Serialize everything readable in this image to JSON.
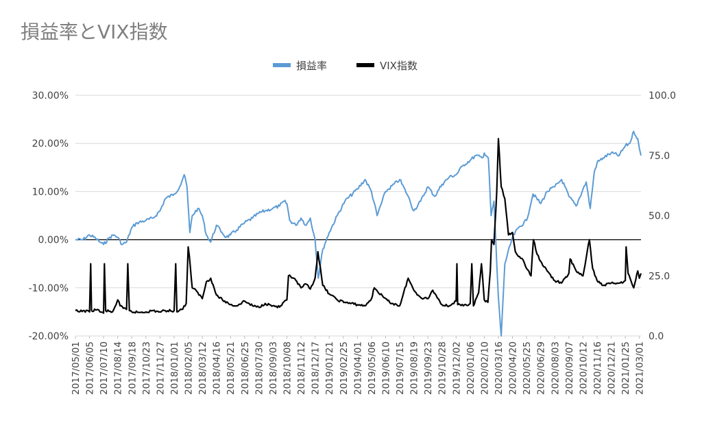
{
  "chart_data": {
    "type": "line",
    "title": "損益率とVIX指数",
    "legend_position": "top",
    "grid": true,
    "series": [
      {
        "name": "損益率",
        "axis": "left",
        "color": "#5b9bd5",
        "points": [
          [
            "2017-05-01",
            0.0
          ],
          [
            "2017-05-20",
            0.0
          ],
          [
            "2017-06-05",
            1.0
          ],
          [
            "2017-06-20",
            0.3
          ],
          [
            "2017-07-01",
            -0.5
          ],
          [
            "2017-07-10",
            -1.0
          ],
          [
            "2017-07-25",
            0.5
          ],
          [
            "2017-08-05",
            1.0
          ],
          [
            "2017-08-14",
            0.5
          ],
          [
            "2017-08-25",
            -1.0
          ],
          [
            "2017-09-05",
            -0.5
          ],
          [
            "2017-09-18",
            2.5
          ],
          [
            "2017-10-01",
            3.5
          ],
          [
            "2017-10-23",
            4.0
          ],
          [
            "2017-11-10",
            4.5
          ],
          [
            "2017-11-27",
            6.0
          ],
          [
            "2017-12-10",
            8.5
          ],
          [
            "2018-01-01",
            9.5
          ],
          [
            "2018-01-15",
            11.0
          ],
          [
            "2018-01-26",
            13.5
          ],
          [
            "2018-02-02",
            11.0
          ],
          [
            "2018-02-09",
            1.5
          ],
          [
            "2018-02-15",
            5.0
          ],
          [
            "2018-03-01",
            6.5
          ],
          [
            "2018-03-12",
            5.0
          ],
          [
            "2018-03-22",
            1.0
          ],
          [
            "2018-04-02",
            -0.5
          ],
          [
            "2018-04-16",
            3.0
          ],
          [
            "2018-04-30",
            1.5
          ],
          [
            "2018-05-10",
            0.5
          ],
          [
            "2018-05-21",
            1.0
          ],
          [
            "2018-06-05",
            2.0
          ],
          [
            "2018-06-25",
            3.5
          ],
          [
            "2018-07-15",
            4.5
          ],
          [
            "2018-07-30",
            5.5
          ],
          [
            "2018-08-15",
            6.0
          ],
          [
            "2018-09-03",
            6.5
          ],
          [
            "2018-09-20",
            7.0
          ],
          [
            "2018-10-01",
            8.0
          ],
          [
            "2018-10-08",
            7.5
          ],
          [
            "2018-10-15",
            4.0
          ],
          [
            "2018-10-30",
            3.0
          ],
          [
            "2018-11-12",
            4.5
          ],
          [
            "2018-11-25",
            3.0
          ],
          [
            "2018-12-05",
            4.5
          ],
          [
            "2018-12-17",
            0.0
          ],
          [
            "2018-12-25",
            -8.0
          ],
          [
            "2019-01-05",
            -2.0
          ],
          [
            "2019-01-21",
            1.5
          ],
          [
            "2019-02-10",
            5.0
          ],
          [
            "2019-03-01",
            8.0
          ],
          [
            "2019-04-01",
            10.5
          ],
          [
            "2019-04-20",
            12.5
          ],
          [
            "2019-05-06",
            10.0
          ],
          [
            "2019-05-20",
            5.0
          ],
          [
            "2019-06-10",
            10.0
          ],
          [
            "2019-07-15",
            12.5
          ],
          [
            "2019-08-05",
            9.0
          ],
          [
            "2019-08-19",
            6.0
          ],
          [
            "2019-09-05",
            8.0
          ],
          [
            "2019-09-23",
            11.0
          ],
          [
            "2019-10-10",
            9.0
          ],
          [
            "2019-10-28",
            11.5
          ],
          [
            "2019-11-15",
            13.0
          ],
          [
            "2019-12-02",
            13.5
          ],
          [
            "2019-12-20",
            15.5
          ],
          [
            "2020-01-06",
            16.5
          ],
          [
            "2020-01-20",
            17.5
          ],
          [
            "2020-02-05",
            17.0
          ],
          [
            "2020-02-10",
            18.0
          ],
          [
            "2020-02-20",
            17.0
          ],
          [
            "2020-02-27",
            5.0
          ],
          [
            "2020-03-05",
            8.0
          ],
          [
            "2020-03-12",
            -5.0
          ],
          [
            "2020-03-16",
            -12.0
          ],
          [
            "2020-03-23",
            -20.0
          ],
          [
            "2020-04-01",
            -5.0
          ],
          [
            "2020-04-20",
            0.5
          ],
          [
            "2020-05-05",
            2.5
          ],
          [
            "2020-05-25",
            4.0
          ],
          [
            "2020-06-10",
            9.5
          ],
          [
            "2020-06-29",
            7.5
          ],
          [
            "2020-07-15",
            10.0
          ],
          [
            "2020-08-03",
            11.0
          ],
          [
            "2020-08-20",
            12.5
          ],
          [
            "2020-09-07",
            9.0
          ],
          [
            "2020-09-25",
            7.0
          ],
          [
            "2020-10-12",
            10.5
          ],
          [
            "2020-10-20",
            12.0
          ],
          [
            "2020-10-30",
            6.5
          ],
          [
            "2020-11-09",
            14.0
          ],
          [
            "2020-11-16",
            16.0
          ],
          [
            "2020-12-01",
            17.0
          ],
          [
            "2020-12-21",
            18.0
          ],
          [
            "2021-01-10",
            17.5
          ],
          [
            "2021-01-25",
            19.5
          ],
          [
            "2021-02-05",
            20.0
          ],
          [
            "2021-02-15",
            22.5
          ],
          [
            "2021-02-25",
            21.0
          ],
          [
            "2021-03-01",
            19.0
          ],
          [
            "2021-03-05",
            17.5
          ]
        ]
      },
      {
        "name": "VIX指数",
        "axis": "right",
        "color": "#000000",
        "points": [
          [
            "2017-05-01",
            10.5
          ],
          [
            "2017-05-10",
            10.0
          ],
          [
            "2017-05-20",
            10.5
          ],
          [
            "2017-06-05",
            10.0
          ],
          [
            "2017-06-08",
            30.0
          ],
          [
            "2017-06-10",
            10.5
          ],
          [
            "2017-06-25",
            11.0
          ],
          [
            "2017-07-01",
            10.0
          ],
          [
            "2017-07-10",
            9.5
          ],
          [
            "2017-07-12",
            30.0
          ],
          [
            "2017-07-15",
            10.5
          ],
          [
            "2017-08-01",
            10.0
          ],
          [
            "2017-08-10",
            13.0
          ],
          [
            "2017-08-14",
            15.0
          ],
          [
            "2017-08-20",
            12.5
          ],
          [
            "2017-08-28",
            11.5
          ],
          [
            "2017-09-05",
            11.0
          ],
          [
            "2017-09-08",
            30.0
          ],
          [
            "2017-09-12",
            10.5
          ],
          [
            "2017-09-18",
            10.0
          ],
          [
            "2017-10-05",
            9.8
          ],
          [
            "2017-10-23",
            10.0
          ],
          [
            "2017-11-10",
            10.5
          ],
          [
            "2017-11-27",
            10.0
          ],
          [
            "2017-12-10",
            10.5
          ],
          [
            "2018-01-01",
            10.5
          ],
          [
            "2018-01-05",
            30.0
          ],
          [
            "2018-01-08",
            10.0
          ],
          [
            "2018-01-20",
            11.0
          ],
          [
            "2018-01-31",
            13.5
          ],
          [
            "2018-02-05",
            37.0
          ],
          [
            "2018-02-08",
            33.0
          ],
          [
            "2018-02-15",
            20.0
          ],
          [
            "2018-03-01",
            18.0
          ],
          [
            "2018-03-12",
            15.5
          ],
          [
            "2018-03-22",
            22.5
          ],
          [
            "2018-04-02",
            24.0
          ],
          [
            "2018-04-16",
            17.0
          ],
          [
            "2018-05-01",
            15.0
          ],
          [
            "2018-05-21",
            13.0
          ],
          [
            "2018-06-05",
            12.5
          ],
          [
            "2018-06-25",
            14.5
          ],
          [
            "2018-07-15",
            12.5
          ],
          [
            "2018-07-30",
            12.0
          ],
          [
            "2018-08-15",
            13.5
          ],
          [
            "2018-09-03",
            12.5
          ],
          [
            "2018-09-20",
            12.0
          ],
          [
            "2018-10-08",
            15.0
          ],
          [
            "2018-10-12",
            25.0
          ],
          [
            "2018-10-25",
            24.0
          ],
          [
            "2018-11-12",
            20.0
          ],
          [
            "2018-11-25",
            21.5
          ],
          [
            "2018-12-05",
            19.5
          ],
          [
            "2018-12-17",
            24.0
          ],
          [
            "2018-12-24",
            35.0
          ],
          [
            "2019-01-05",
            21.0
          ],
          [
            "2019-01-21",
            17.5
          ],
          [
            "2019-02-10",
            15.0
          ],
          [
            "2019-03-01",
            14.0
          ],
          [
            "2019-04-01",
            13.0
          ],
          [
            "2019-04-20",
            12.5
          ],
          [
            "2019-05-06",
            15.5
          ],
          [
            "2019-05-13",
            20.0
          ],
          [
            "2019-06-05",
            16.0
          ],
          [
            "2019-06-20",
            14.0
          ],
          [
            "2019-07-15",
            12.5
          ],
          [
            "2019-08-05",
            24.0
          ],
          [
            "2019-08-19",
            19.0
          ],
          [
            "2019-09-05",
            16.0
          ],
          [
            "2019-09-23",
            15.5
          ],
          [
            "2019-10-05",
            19.0
          ],
          [
            "2019-10-28",
            13.0
          ],
          [
            "2019-11-15",
            12.5
          ],
          [
            "2019-12-02",
            14.5
          ],
          [
            "2019-12-04",
            30.0
          ],
          [
            "2019-12-06",
            13.0
          ],
          [
            "2019-12-20",
            12.5
          ],
          [
            "2020-01-06",
            13.5
          ],
          [
            "2020-01-10",
            30.0
          ],
          [
            "2020-01-14",
            12.5
          ],
          [
            "2020-01-27",
            18.0
          ],
          [
            "2020-02-03",
            30.0
          ],
          [
            "2020-02-10",
            15.0
          ],
          [
            "2020-02-19",
            14.0
          ],
          [
            "2020-02-25",
            27.0
          ],
          [
            "2020-02-28",
            40.0
          ],
          [
            "2020-03-05",
            38.0
          ],
          [
            "2020-03-12",
            60.0
          ],
          [
            "2020-03-16",
            82.0
          ],
          [
            "2020-03-23",
            62.0
          ],
          [
            "2020-04-01",
            57.0
          ],
          [
            "2020-04-10",
            42.0
          ],
          [
            "2020-04-20",
            43.0
          ],
          [
            "2020-04-27",
            35.0
          ],
          [
            "2020-05-05",
            33.0
          ],
          [
            "2020-05-15",
            32.0
          ],
          [
            "2020-05-25",
            28.0
          ],
          [
            "2020-06-05",
            25.0
          ],
          [
            "2020-06-11",
            40.0
          ],
          [
            "2020-06-20",
            34.0
          ],
          [
            "2020-06-29",
            31.0
          ],
          [
            "2020-07-15",
            27.0
          ],
          [
            "2020-08-03",
            23.0
          ],
          [
            "2020-08-20",
            22.0
          ],
          [
            "2020-09-07",
            26.0
          ],
          [
            "2020-09-10",
            32.0
          ],
          [
            "2020-09-25",
            27.0
          ],
          [
            "2020-10-12",
            25.0
          ],
          [
            "2020-10-28",
            40.0
          ],
          [
            "2020-11-05",
            28.0
          ],
          [
            "2020-11-16",
            23.0
          ],
          [
            "2020-12-01",
            21.0
          ],
          [
            "2020-12-21",
            22.0
          ],
          [
            "2021-01-10",
            22.0
          ],
          [
            "2021-01-25",
            23.0
          ],
          [
            "2021-01-27",
            37.0
          ],
          [
            "2021-02-01",
            26.0
          ],
          [
            "2021-02-15",
            20.0
          ],
          [
            "2021-02-25",
            27.0
          ],
          [
            "2021-03-01",
            24.0
          ],
          [
            "2021-03-05",
            26.0
          ]
        ]
      }
    ],
    "y_left": {
      "min": -20,
      "max": 30,
      "step": 10,
      "format": "percent2",
      "tick_labels": [
        "-20.00%",
        "-10.00%",
        "0.00%",
        "10.00%",
        "20.00%",
        "30.00%"
      ]
    },
    "y_right": {
      "min": 0,
      "max": 100,
      "step": 25,
      "tick_labels": [
        "0.0",
        "25.0",
        "50.0",
        "75.0",
        "100.0"
      ]
    },
    "x_axis": {
      "type": "date",
      "min": "2017-05-01",
      "max": "2021-03-05",
      "tick_labels": [
        "2017/05/01",
        "2017/06/05",
        "2017/07/10",
        "2017/08/14",
        "2017/09/18",
        "2017/10/23",
        "2017/11/27",
        "2018/01/01",
        "2018/02/05",
        "2018/03/12",
        "2018/04/16",
        "2018/05/21",
        "2018/06/25",
        "2018/07/30",
        "2018/09/03",
        "2018/10/08",
        "2018/11/12",
        "2018/12/17",
        "2019/01/21",
        "2019/02/25",
        "2019/04/01",
        "2019/05/06",
        "2019/06/10",
        "2019/07/15",
        "2019/08/19",
        "2019/09/23",
        "2019/10/28",
        "2019/12/02",
        "2020/01/06",
        "2020/02/10",
        "2020/03/16",
        "2020/04/20",
        "2020/05/25",
        "2020/06/29",
        "2020/08/03",
        "2020/09/07",
        "2020/10/12",
        "2020/11/16",
        "2020/12/21",
        "2021/01/25",
        "2021/03/01"
      ]
    }
  }
}
